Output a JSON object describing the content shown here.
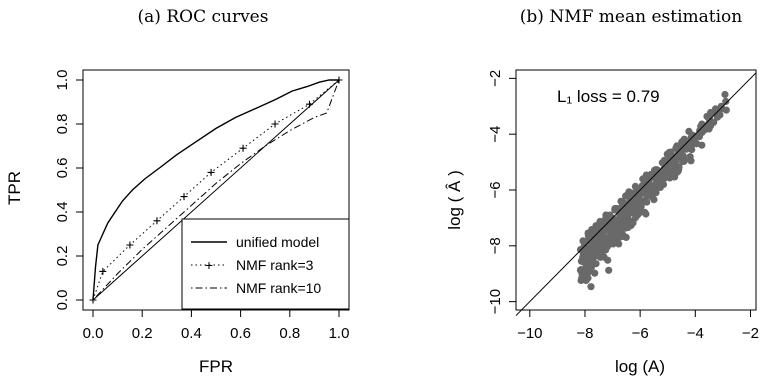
{
  "chart_data": [
    {
      "type": "line",
      "title": "(a) ROC curves",
      "xlabel": "FPR",
      "ylabel": "TPR",
      "xlim": [
        0,
        1
      ],
      "ylim": [
        0,
        1
      ],
      "xticks": [
        "0.0",
        "0.2",
        "0.4",
        "0.6",
        "0.8",
        "1.0"
      ],
      "yticks": [
        "0.0",
        "0.2",
        "0.4",
        "0.6",
        "0.8",
        "1.0"
      ],
      "legend_position": "bottom-right",
      "series": [
        {
          "name": "unified model",
          "style": "solid",
          "x": [
            0,
            0.01,
            0.02,
            0.04,
            0.06,
            0.09,
            0.12,
            0.16,
            0.21,
            0.27,
            0.34,
            0.42,
            0.5,
            0.58,
            0.66,
            0.74,
            0.81,
            0.87,
            0.92,
            0.96,
            1.0
          ],
          "y": [
            0,
            0.15,
            0.25,
            0.3,
            0.35,
            0.4,
            0.45,
            0.5,
            0.55,
            0.6,
            0.66,
            0.72,
            0.78,
            0.83,
            0.87,
            0.91,
            0.95,
            0.97,
            0.99,
            1.0,
            1.0
          ]
        },
        {
          "name": "NMF rank=3",
          "style": "dotted",
          "marker": "+",
          "x": [
            0,
            0.04,
            0.15,
            0.26,
            0.37,
            0.48,
            0.61,
            0.74,
            0.88,
            1.0
          ],
          "y": [
            0,
            0.13,
            0.25,
            0.36,
            0.47,
            0.58,
            0.69,
            0.8,
            0.89,
            1.0
          ]
        },
        {
          "name": "NMF rank=10",
          "style": "dotdash",
          "x": [
            0,
            0.1,
            0.2,
            0.3,
            0.4,
            0.5,
            0.6,
            0.7,
            0.8,
            0.9,
            0.95,
            1.0
          ],
          "y": [
            0,
            0.12,
            0.23,
            0.33,
            0.43,
            0.53,
            0.62,
            0.7,
            0.77,
            0.83,
            0.85,
            1.0
          ]
        },
        {
          "name": "",
          "style": "solid-thin",
          "x": [
            0,
            1
          ],
          "y": [
            0,
            1
          ]
        }
      ]
    },
    {
      "type": "scatter",
      "title": "(b) NMF mean estimation",
      "xlabel": "log (A)",
      "ylabel": "log ( Â )",
      "annotation": "L₁ loss = 0.79",
      "xlim": [
        -10.5,
        -1.8
      ],
      "ylim": [
        -10.3,
        -1.7
      ],
      "xticks": [
        "−10",
        "−8",
        "−6",
        "−4",
        "−2"
      ],
      "yticks": [
        "−10",
        "−8",
        "−6",
        "−4",
        "−2"
      ],
      "point_color": "#696969",
      "reference_line": {
        "from": [
          -10.5,
          -10.5
        ],
        "to": [
          -1.8,
          -1.8
        ]
      }
    }
  ]
}
